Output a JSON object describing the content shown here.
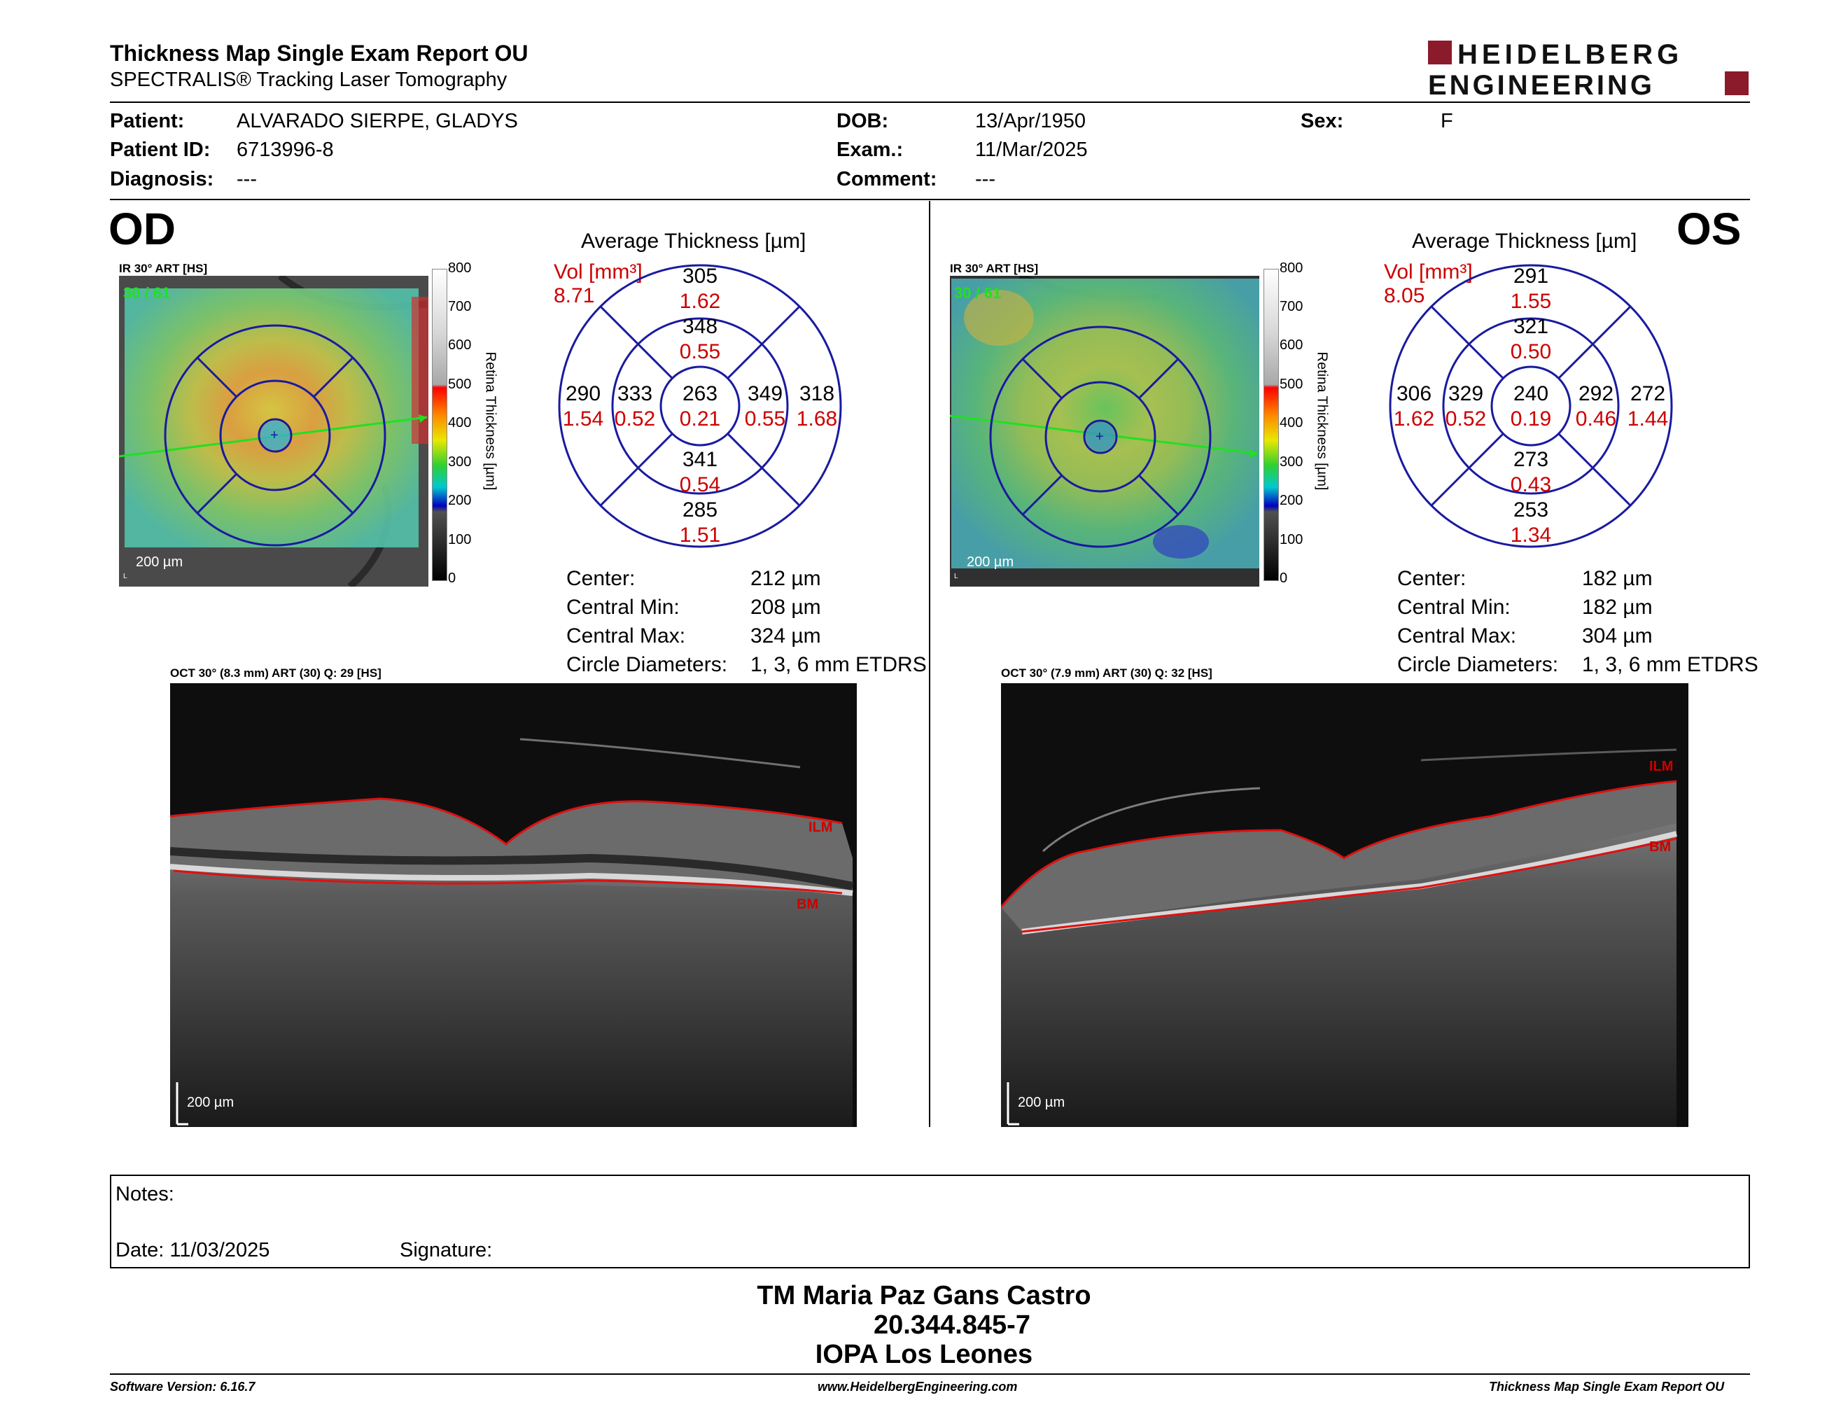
{
  "header": {
    "title": "Thickness Map Single Exam Report OU",
    "subtitle": "SPECTRALIS® Tracking Laser Tomography",
    "logo_line1": "HEIDELBERG",
    "logo_line2": "ENGINEERING",
    "logo_color": "#8b1a2b"
  },
  "patient": {
    "patient_label": "Patient:",
    "patient_value": "ALVARADO SIERPE, GLADYS",
    "id_label": "Patient ID:",
    "id_value": "6713996-8",
    "diagnosis_label": "Diagnosis:",
    "diagnosis_value": "---",
    "dob_label": "DOB:",
    "dob_value": "13/Apr/1950",
    "exam_label": "Exam.:",
    "exam_value": "11/Mar/2025",
    "comment_label": "Comment:",
    "comment_value": "---",
    "sex_label": "Sex:",
    "sex_value": "F"
  },
  "colorbar": {
    "ticks": [
      "800",
      "700",
      "600",
      "500",
      "400",
      "300",
      "200",
      "100",
      "0"
    ],
    "label": "Retina Thickness [µm]"
  },
  "od": {
    "eye": "OD",
    "ir_title": "IR 30° ART [HS]",
    "ir_overlay": "30 / 61",
    "ir_scale": "200 µm",
    "grid_title": "Average Thickness [µm]",
    "vol_label": "Vol [mm³]",
    "vol_value": "8.71",
    "grid": {
      "outer_sup": {
        "t": "305",
        "v": "1.62"
      },
      "inner_sup": {
        "t": "348",
        "v": "0.55"
      },
      "outer_temp": {
        "t": "290",
        "v": "1.54"
      },
      "inner_temp": {
        "t": "333",
        "v": "0.52"
      },
      "center": {
        "t": "263",
        "v": "0.21"
      },
      "inner_nas": {
        "t": "349",
        "v": "0.55"
      },
      "outer_nas": {
        "t": "318",
        "v": "1.68"
      },
      "inner_inf": {
        "t": "341",
        "v": "0.54"
      },
      "outer_inf": {
        "t": "285",
        "v": "1.51"
      }
    },
    "stats": {
      "center_label": "Center:",
      "center_value": "212 µm",
      "min_label": "Central Min:",
      "min_value": "208 µm",
      "max_label": "Central Max:",
      "max_value": "324 µm",
      "diam_label": "Circle Diameters:",
      "diam_value": "1, 3, 6 mm ETDRS"
    },
    "oct_title": "OCT 30° (8.3 mm) ART (30) Q: 29 [HS]",
    "oct_ilm": "ILM",
    "oct_bm": "BM",
    "oct_scale": "200 µm"
  },
  "os": {
    "eye": "OS",
    "ir_title": "IR 30° ART [HS]",
    "ir_overlay": "30 / 61",
    "ir_scale": "200 µm",
    "grid_title": "Average Thickness [µm]",
    "vol_label": "Vol [mm³]",
    "vol_value": "8.05",
    "grid": {
      "outer_sup": {
        "t": "291",
        "v": "1.55"
      },
      "inner_sup": {
        "t": "321",
        "v": "0.50"
      },
      "outer_temp": {
        "t": "306",
        "v": "1.62"
      },
      "inner_temp": {
        "t": "329",
        "v": "0.52"
      },
      "center": {
        "t": "240",
        "v": "0.19"
      },
      "inner_nas": {
        "t": "292",
        "v": "0.46"
      },
      "outer_nas": {
        "t": "272",
        "v": "1.44"
      },
      "inner_inf": {
        "t": "273",
        "v": "0.43"
      },
      "outer_inf": {
        "t": "253",
        "v": "1.34"
      }
    },
    "stats": {
      "center_label": "Center:",
      "center_value": "182 µm",
      "min_label": "Central Min:",
      "min_value": "182 µm",
      "max_label": "Central Max:",
      "max_value": "304 µm",
      "diam_label": "Circle Diameters:",
      "diam_value": "1, 3, 6 mm ETDRS"
    },
    "oct_title": "OCT 30° (7.9 mm) ART (30) Q: 32 [HS]",
    "oct_ilm": "ILM",
    "oct_bm": "BM",
    "oct_scale": "200 µm"
  },
  "notes": {
    "notes_label": "Notes:",
    "date_label": "Date: 11/03/2025",
    "signature_label": "Signature:"
  },
  "signer": {
    "name": "TM Maria Paz Gans Castro",
    "rut": "20.344.845-7",
    "org": "IOPA Los Leones"
  },
  "footer": {
    "software": "Software Version: 6.16.7",
    "url": "www.HeidelbergEngineering.com",
    "report": "Thickness Map Single Exam Report OU"
  },
  "colors": {
    "grid_line": "#1a1aa0",
    "red_value": "#cc0000",
    "ilm_line": "#e01010"
  }
}
